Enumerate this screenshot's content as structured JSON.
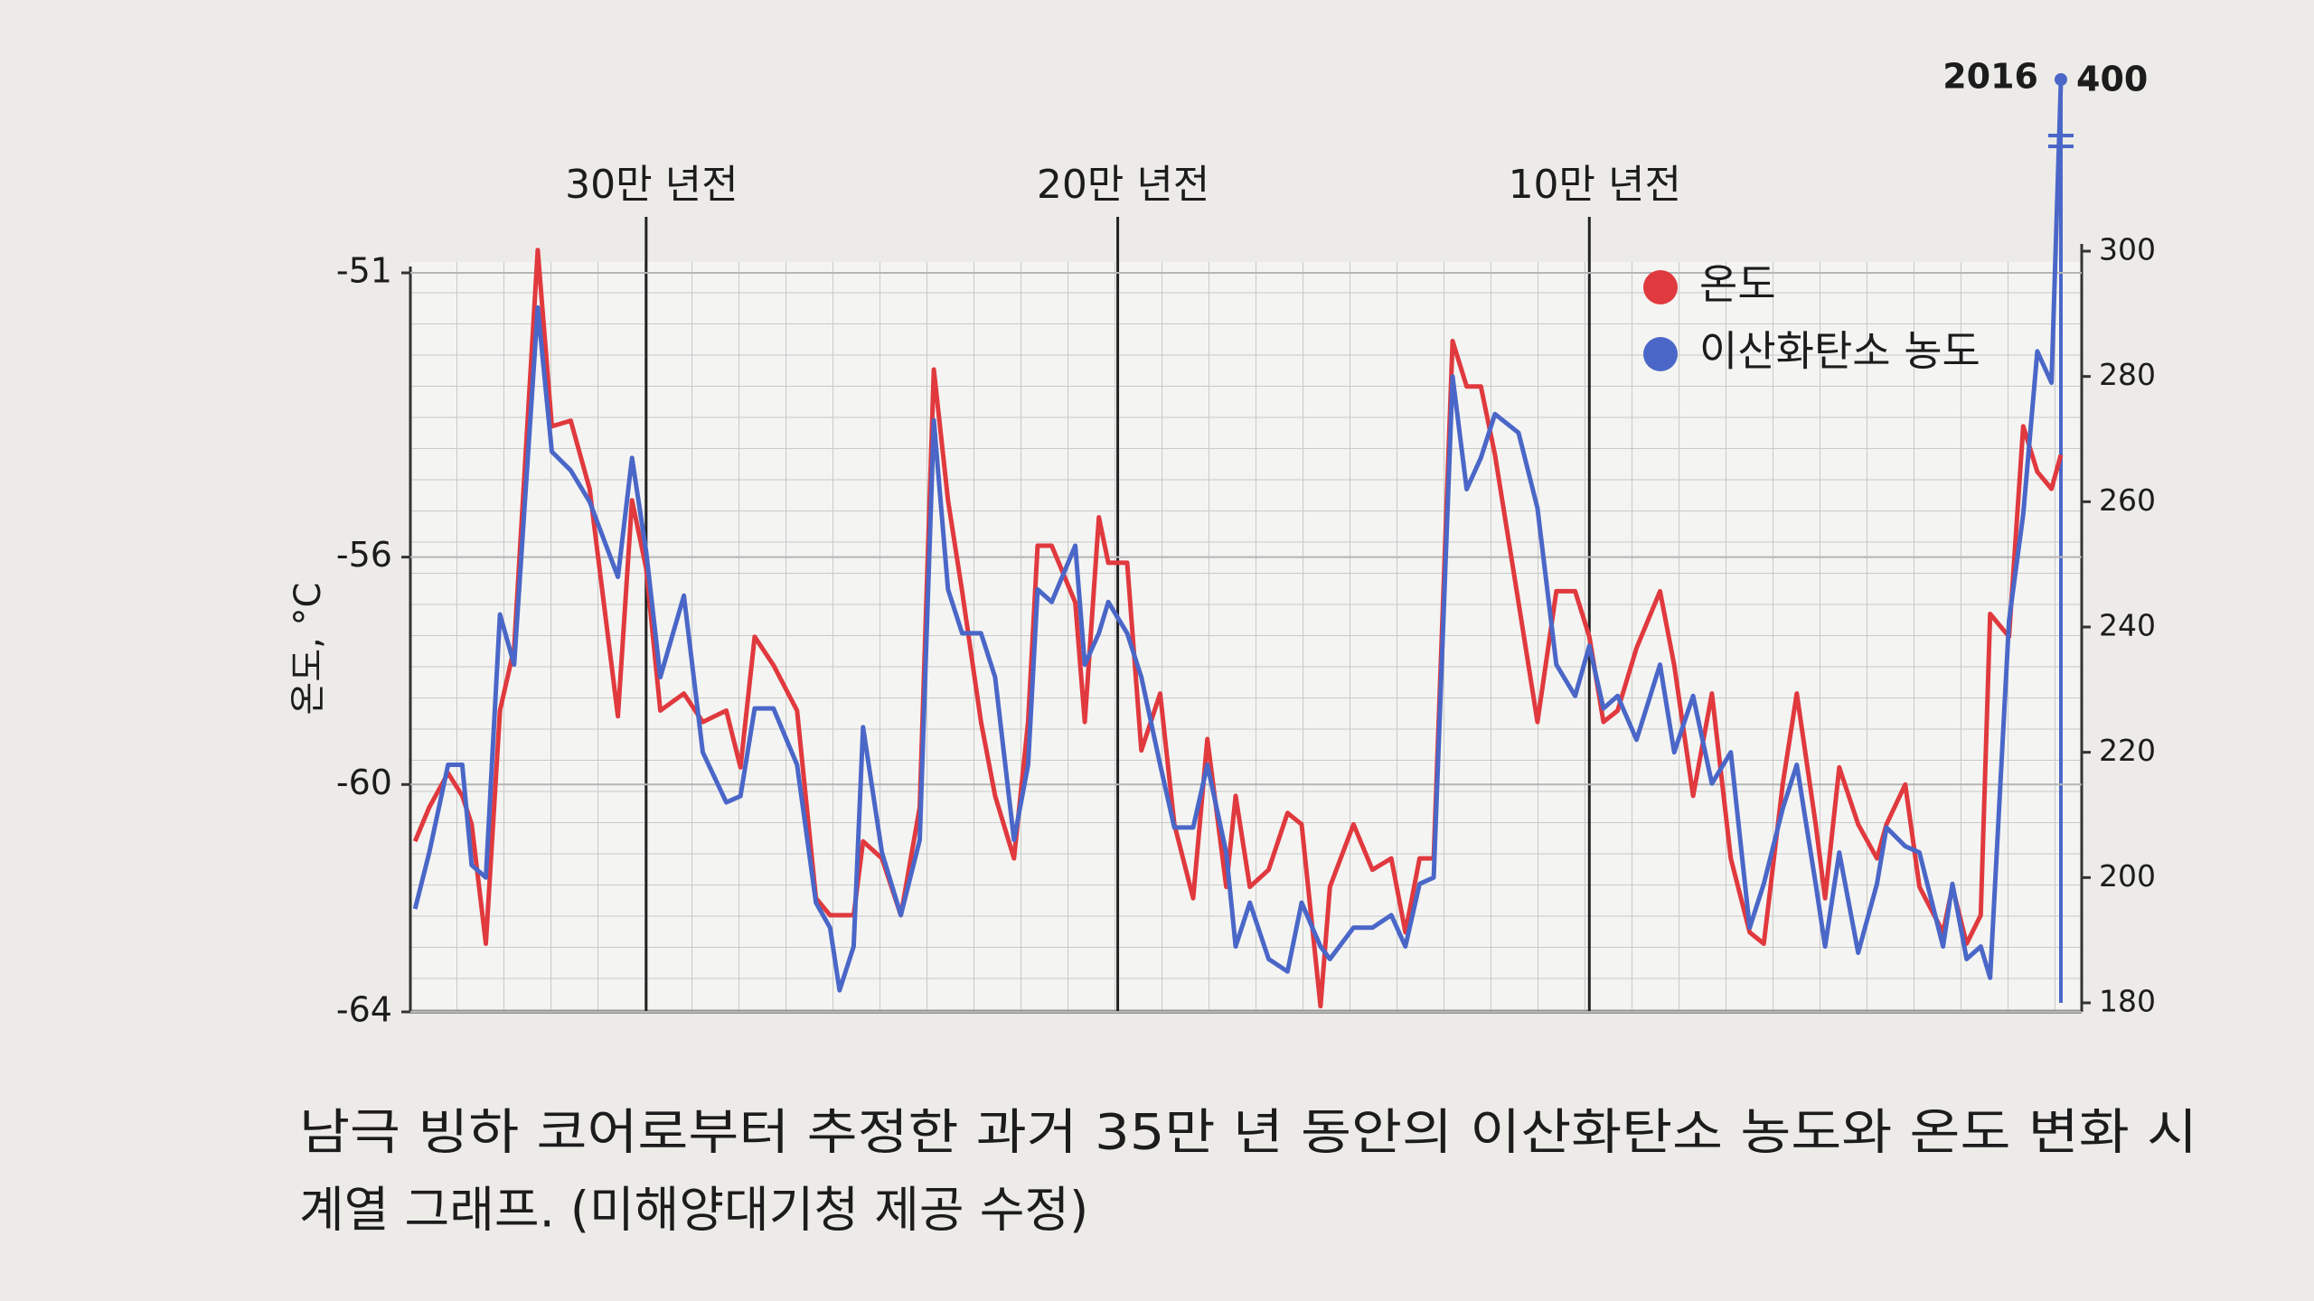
{
  "chart_data": {
    "type": "line",
    "x": [
      349000,
      346000,
      342000,
      339000,
      337000,
      334000,
      331000,
      328000,
      323000,
      320000,
      316000,
      312000,
      306000,
      303000,
      300000,
      297000,
      292000,
      288000,
      283000,
      280000,
      277000,
      273000,
      268000,
      264000,
      261000,
      259000,
      256000,
      254000,
      250000,
      246000,
      242000,
      239000,
      236000,
      233000,
      229000,
      226000,
      222000,
      219000,
      217000,
      214000,
      209000,
      207000,
      204000,
      202000,
      198000,
      195000,
      191000,
      188000,
      184000,
      181000,
      177000,
      175000,
      172000,
      168000,
      164000,
      161000,
      157000,
      155000,
      150000,
      146000,
      142000,
      139000,
      136000,
      133000,
      129000,
      126000,
      123000,
      120000,
      115000,
      111000,
      107000,
      103000,
      100000,
      97000,
      94000,
      90000,
      85000,
      82000,
      78000,
      74000,
      70000,
      66000,
      63000,
      59000,
      56000,
      52000,
      50000,
      47000,
      43000,
      39000,
      37000,
      33000,
      30000,
      25000,
      23000,
      20000,
      17000,
      15000,
      11000,
      8000,
      5000,
      2000,
      0
    ],
    "series": [
      {
        "name": "온도",
        "color": "#e0393e",
        "values": [
          -61.0,
          -60.4,
          -59.8,
          -60.2,
          -60.7,
          -62.8,
          -58.7,
          -57.6,
          -50.6,
          -53.7,
          -53.6,
          -54.8,
          -58.8,
          -55.0,
          -56.2,
          -58.7,
          -58.4,
          -58.9,
          -58.7,
          -59.7,
          -57.4,
          -57.9,
          -58.7,
          -62.0,
          -62.3,
          -62.3,
          -62.3,
          -61.0,
          -61.3,
          -62.3,
          -60.4,
          -52.7,
          -55.0,
          -56.6,
          -58.9,
          -60.2,
          -61.3,
          -58.9,
          -55.8,
          -55.8,
          -56.8,
          -58.9,
          -55.3,
          -56.1,
          -56.1,
          -59.4,
          -58.4,
          -60.7,
          -62.0,
          -59.2,
          -61.8,
          -60.2,
          -61.8,
          -61.5,
          -60.5,
          -60.7,
          -63.9,
          -61.8,
          -60.7,
          -61.5,
          -61.3,
          -62.6,
          -61.3,
          -61.3,
          -52.2,
          -53.0,
          -53.0,
          -54.2,
          -56.8,
          -58.9,
          -56.6,
          -56.6,
          -57.4,
          -58.9,
          -58.7,
          -57.6,
          -56.6,
          -57.9,
          -60.2,
          -58.4,
          -61.3,
          -62.6,
          -62.8,
          -60.0,
          -58.4,
          -60.7,
          -62.0,
          -59.7,
          -60.7,
          -61.3,
          -60.7,
          -60.0,
          -61.8,
          -62.6,
          -61.8,
          -62.8,
          -62.3,
          -57.0,
          -57.4,
          -53.7,
          -54.5,
          -54.8,
          -54.2
        ]
      },
      {
        "name": "이산화탄소 농도",
        "color": "#4a67c8",
        "axis": "y2",
        "values": [
          195,
          204,
          218,
          218,
          202,
          200,
          242,
          234,
          291,
          268,
          265,
          260,
          248,
          267,
          252,
          232,
          245,
          220,
          212,
          213,
          227,
          227,
          218,
          196,
          192,
          182,
          189,
          224,
          204,
          194,
          206,
          273,
          246,
          239,
          239,
          232,
          206,
          218,
          246,
          244,
          253,
          234,
          239,
          244,
          239,
          232,
          218,
          208,
          208,
          218,
          204,
          189,
          196,
          187,
          185,
          196,
          189,
          187,
          192,
          192,
          194,
          189,
          199,
          200,
          280,
          262,
          267,
          274,
          271,
          259,
          234,
          229,
          237,
          227,
          229,
          222,
          234,
          220,
          229,
          215,
          220,
          192,
          199,
          211,
          218,
          199,
          189,
          204,
          188,
          199,
          208,
          205,
          204,
          189,
          199,
          187,
          189,
          184,
          241,
          258,
          284,
          279,
          400
        ]
      }
    ],
    "y_label": "온도, °C",
    "xlim": [
      350000,
      0
    ],
    "xticks": [
      {
        "value": 300000,
        "label": "30만 년전"
      },
      {
        "value": 200000,
        "label": "20만 년전"
      },
      {
        "value": 100000,
        "label": "10만 년전"
      }
    ],
    "ylim": [
      -64,
      -51
    ],
    "yticks": [
      -64,
      -60,
      -56,
      -51
    ],
    "y2lim": [
      180,
      400
    ],
    "y2ticks": [
      180,
      200,
      220,
      240,
      260,
      280,
      300,
      400
    ],
    "y2_axis_break": true,
    "annotation": "2016",
    "caption": [
      "남극 빙하 코어로부터 추정한 과거 35만 년 동안의 이산화탄소 농도와 온도 변화 시",
      "계열 그래프. (미해양대기청 제공 수정)"
    ],
    "grid": true,
    "legend": "upper right"
  }
}
